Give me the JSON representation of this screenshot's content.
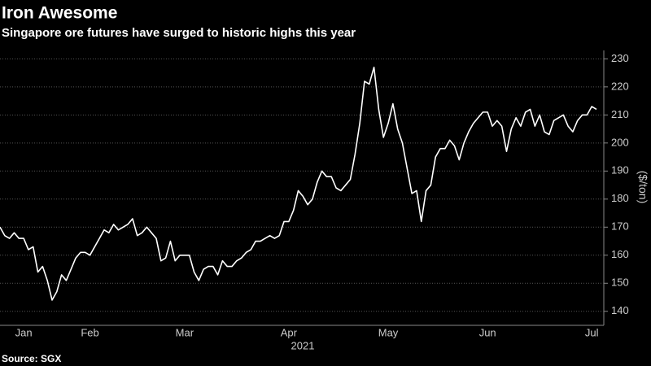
{
  "chart_data": {
    "type": "line",
    "title": "Iron Awesome",
    "subtitle": "Singapore ore futures have surged to historic highs this year",
    "y_label": "($/ton)",
    "x_label": "2021",
    "source": "Source: SGX",
    "color": "#ffffff",
    "grid": true,
    "ylim": [
      135,
      233
    ],
    "yticks": [
      140,
      150,
      160,
      170,
      180,
      190,
      200,
      210,
      220,
      230
    ],
    "categories": [
      null,
      null,
      null,
      null,
      null,
      "Jan",
      null,
      null,
      null,
      null,
      null,
      null,
      null,
      null,
      null,
      null,
      null,
      null,
      null,
      "Feb",
      null,
      null,
      null,
      null,
      null,
      null,
      null,
      null,
      null,
      null,
      null,
      null,
      null,
      null,
      null,
      null,
      null,
      null,
      null,
      "Mar",
      null,
      null,
      null,
      null,
      null,
      null,
      null,
      null,
      null,
      null,
      null,
      null,
      null,
      null,
      null,
      null,
      null,
      null,
      null,
      null,
      null,
      "Apr",
      null,
      null,
      null,
      null,
      null,
      null,
      null,
      null,
      null,
      null,
      null,
      null,
      null,
      null,
      null,
      null,
      null,
      null,
      null,
      null,
      "May",
      null,
      null,
      null,
      null,
      null,
      null,
      null,
      null,
      null,
      null,
      null,
      null,
      null,
      null,
      null,
      null,
      null,
      null,
      null,
      null,
      "Jun",
      null,
      null,
      null,
      null,
      null,
      null,
      null,
      null,
      null,
      null,
      null,
      null,
      null,
      null,
      null,
      null,
      null,
      null,
      null,
      null,
      null,
      "Jul",
      null
    ],
    "values": [
      170,
      167,
      166,
      168,
      166,
      166,
      162,
      163,
      154,
      156,
      151,
      144,
      147,
      153,
      151,
      155,
      159,
      161,
      161,
      160,
      163,
      166,
      169,
      168,
      171,
      169,
      170,
      171,
      173,
      167,
      168,
      170,
      168,
      166,
      158,
      159,
      165,
      158,
      160,
      160,
      160,
      154,
      151,
      155,
      156,
      156,
      153,
      158,
      156,
      156,
      158,
      159,
      161,
      162,
      165,
      165,
      166,
      167,
      166,
      167,
      172,
      172,
      176,
      183,
      181,
      178,
      180,
      186,
      190,
      188,
      188,
      184,
      183,
      185,
      187,
      196,
      207,
      222,
      221,
      227,
      212,
      202,
      207,
      214,
      205,
      200,
      191,
      182,
      183,
      172,
      183,
      185,
      195,
      198,
      198,
      201,
      199,
      194,
      200,
      204,
      207,
      209,
      211,
      211,
      206,
      208,
      206,
      197,
      205,
      209,
      206,
      211,
      212,
      206,
      210,
      204,
      203,
      208,
      209,
      210,
      206,
      204,
      208,
      210,
      210,
      213,
      212
    ]
  }
}
